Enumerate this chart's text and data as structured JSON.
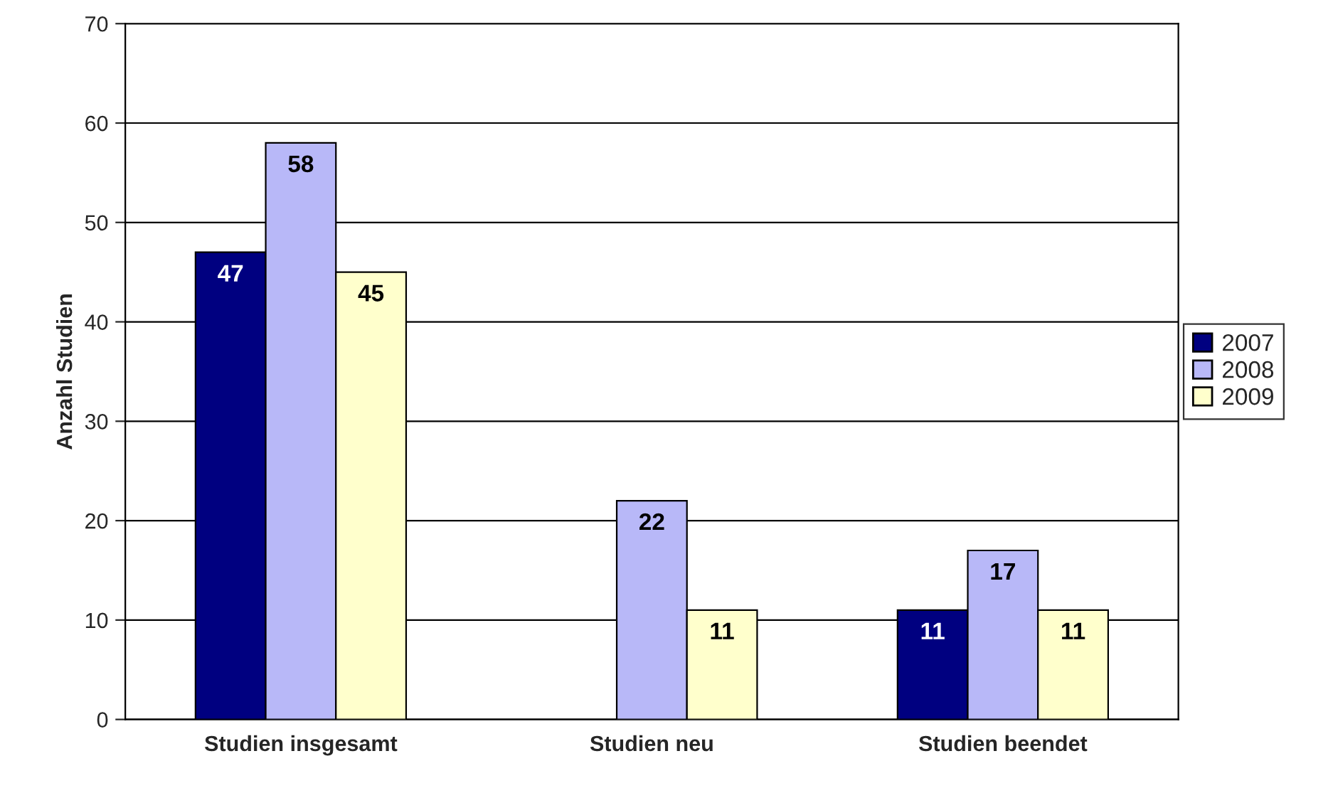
{
  "chart_data": {
    "type": "bar",
    "ylabel": "Anzahl Studien",
    "categories": [
      "Studien insgesamt",
      "Studien neu",
      "Studien beendet"
    ],
    "series": [
      {
        "name": "2007",
        "color": "#000080",
        "values": [
          47,
          null,
          11
        ]
      },
      {
        "name": "2008",
        "color": "#b8b8f8",
        "values": [
          58,
          22,
          17
        ]
      },
      {
        "name": "2009",
        "color": "#ffffcc",
        "values": [
          45,
          11,
          11
        ]
      }
    ],
    "ylim": [
      0,
      70
    ],
    "yticks": [
      0,
      10,
      20,
      30,
      40,
      50,
      60,
      70
    ],
    "grid": "y",
    "legend": "right",
    "data_labels": true
  }
}
